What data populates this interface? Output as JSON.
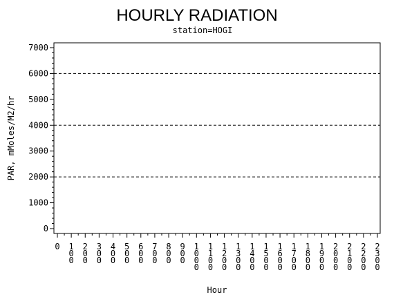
{
  "chart_data": {
    "type": "line",
    "title": "HOURLY RADIATION",
    "subtitle": "station=HOGI",
    "xlabel": "Hour",
    "ylabel": "PAR, mMoles/M2/hr",
    "ylim": [
      0,
      7000
    ],
    "y_ticks": [
      0,
      1000,
      2000,
      3000,
      4000,
      5000,
      6000,
      7000
    ],
    "y_tick_labels": [
      "0",
      "1000",
      "2000",
      "3000",
      "4000",
      "5000",
      "6000",
      "7000"
    ],
    "reference_lines": [
      2000,
      4000,
      6000
    ],
    "x_ticks": [
      0,
      100,
      200,
      300,
      400,
      500,
      600,
      700,
      800,
      900,
      1000,
      1100,
      1200,
      1300,
      1400,
      1500,
      1600,
      1700,
      1800,
      1900,
      2000,
      2100,
      2200,
      2300
    ],
    "x_tick_labels": [
      "0",
      "100",
      "200",
      "300",
      "400",
      "500",
      "600",
      "700",
      "800",
      "900",
      "1000",
      "1100",
      "1200",
      "1300",
      "1400",
      "1500",
      "1600",
      "1700",
      "1800",
      "1900",
      "2000",
      "2100",
      "2200",
      "2300"
    ],
    "series": [],
    "grid": false
  }
}
